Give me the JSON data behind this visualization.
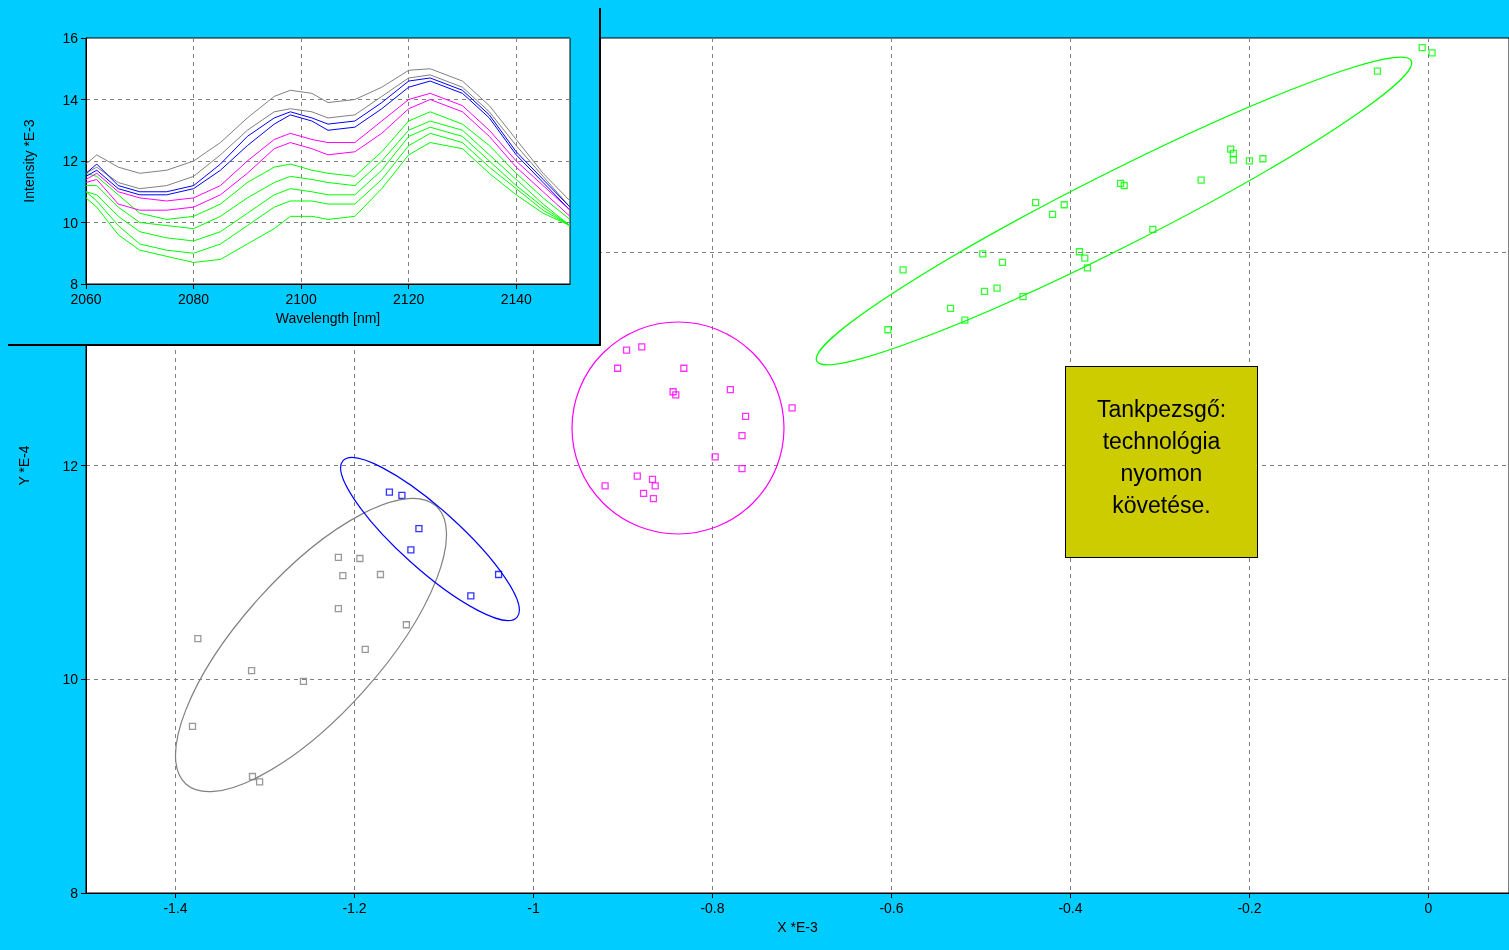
{
  "chart_data": [
    {
      "type": "scatter",
      "xlabel": "X *E-3",
      "ylabel": "Y *E-4",
      "xlim": [
        -1.5,
        0.09
      ],
      "ylim": [
        8,
        16
      ],
      "xticks": [
        -1.4,
        -1.2,
        -1,
        -0.8,
        -0.6,
        -0.4,
        -0.2,
        0
      ],
      "yticks": [
        8,
        10,
        12,
        {
          "value": 14,
          "label": null
        }
      ],
      "grid": true,
      "marker": "square",
      "annotations": [
        "Tankpezsgő: technológia nyomon követése."
      ],
      "series": [
        {
          "color": "#808080",
          "x": [
            -1.375,
            -1.381,
            -1.315,
            -1.314,
            -1.306,
            -1.257,
            -1.218,
            -1.213,
            -1.218,
            -1.194,
            -1.188,
            -1.171,
            -1.142
          ],
          "values": [
            10.38,
            9.56,
            10.08,
            9.09,
            9.04,
            9.98,
            11.14,
            10.97,
            10.66,
            11.13,
            10.28,
            10.98,
            10.51
          ]
        },
        {
          "color": "#0000ff",
          "x": [
            -1.161,
            -1.147,
            -1.128,
            -1.137,
            -1.039,
            -1.07
          ],
          "values": [
            11.75,
            11.72,
            11.41,
            11.21,
            10.98,
            10.78
          ]
        },
        {
          "color": "#ff00ff",
          "x": [
            -0.896,
            -0.879,
            -0.906,
            -0.832,
            -0.844,
            -0.841,
            -0.78,
            -0.711,
            -0.763,
            -0.767,
            -0.797,
            -0.767,
            -0.92,
            -0.884,
            -0.867,
            -0.864,
            -0.877,
            -0.866
          ],
          "values": [
            13.08,
            13.11,
            12.91,
            12.91,
            12.69,
            12.66,
            12.71,
            12.54,
            12.46,
            12.28,
            12.08,
            11.97,
            11.81,
            11.9,
            11.87,
            11.81,
            11.74,
            11.69
          ]
        },
        {
          "color": "#00ff00",
          "x": [
            -0.007,
            0.004,
            -0.057,
            -0.221,
            -0.218,
            -0.218,
            -0.2,
            -0.185,
            -0.254,
            -0.344,
            -0.34,
            -0.308,
            -0.439,
            -0.407,
            -0.42,
            -0.39,
            -0.384,
            -0.381,
            -0.498,
            -0.476,
            -0.482,
            -0.496,
            -0.453,
            -0.587,
            -0.534,
            -0.518,
            -0.604
          ],
          "values": [
            15.91,
            15.86,
            15.69,
            14.96,
            14.92,
            14.86,
            14.85,
            14.87,
            14.67,
            14.64,
            14.62,
            14.21,
            14.46,
            14.44,
            14.35,
            14.0,
            13.94,
            13.85,
            13.98,
            13.9,
            13.66,
            13.63,
            13.58,
            13.83,
            13.47,
            13.36,
            13.27
          ]
        }
      ]
    },
    {
      "type": "line",
      "xlabel": "Wavelength [nm]",
      "ylabel": "Intensity *E-3",
      "xlim": [
        2060,
        2150
      ],
      "ylim": [
        8,
        16
      ],
      "xticks": [
        2060,
        2080,
        2100,
        2120,
        2140
      ],
      "yticks": [
        8,
        10,
        12,
        14,
        16
      ],
      "grid": true,
      "x": [
        2060,
        2062,
        2066,
        2070,
        2075,
        2080,
        2085,
        2090,
        2095,
        2098,
        2102,
        2105,
        2110,
        2115,
        2120,
        2124,
        2130,
        2135,
        2140,
        2145,
        2150
      ],
      "series": [
        {
          "color": "#00ff00",
          "values": [
            11.6,
            11.5,
            10.9,
            10.3,
            10.1,
            10.2,
            10.6,
            11.3,
            11.8,
            11.9,
            11.7,
            11.6,
            11.5,
            12.3,
            13.3,
            13.6,
            13.2,
            12.5,
            11.6,
            10.8,
            10.1
          ]
        },
        {
          "color": "#00ff00",
          "values": [
            11.2,
            11.2,
            10.5,
            10.0,
            9.9,
            9.8,
            10.2,
            10.8,
            11.3,
            11.5,
            11.4,
            11.3,
            11.2,
            12.0,
            13.0,
            13.3,
            13.0,
            12.2,
            11.4,
            10.6,
            9.9
          ]
        },
        {
          "color": "#00ff00",
          "values": [
            11.0,
            10.9,
            10.2,
            9.7,
            9.5,
            9.4,
            9.7,
            10.3,
            10.9,
            11.1,
            11.0,
            10.9,
            10.9,
            11.7,
            12.8,
            13.1,
            12.8,
            12.0,
            11.2,
            10.5,
            9.9
          ]
        },
        {
          "color": "#00ff00",
          "values": [
            11.0,
            10.7,
            9.9,
            9.3,
            9.1,
            9.0,
            9.3,
            9.9,
            10.5,
            10.7,
            10.7,
            10.6,
            10.6,
            11.4,
            12.5,
            12.9,
            12.6,
            11.8,
            11.1,
            10.4,
            9.9
          ]
        },
        {
          "color": "#00ff00",
          "values": [
            10.8,
            10.5,
            9.6,
            9.1,
            8.9,
            8.7,
            8.8,
            9.3,
            9.8,
            10.2,
            10.2,
            10.1,
            10.2,
            11.1,
            12.2,
            12.6,
            12.4,
            11.6,
            10.9,
            10.3,
            9.9
          ]
        },
        {
          "color": "#808080",
          "values": [
            11.9,
            12.2,
            11.8,
            11.6,
            11.7,
            12.0,
            12.6,
            13.4,
            14.1,
            14.3,
            14.2,
            13.9,
            14.0,
            14.4,
            14.95,
            15.0,
            14.6,
            13.8,
            12.7,
            11.6,
            10.7
          ]
        },
        {
          "color": "#808080",
          "values": [
            11.6,
            11.8,
            11.3,
            11.1,
            11.2,
            11.5,
            12.2,
            13.0,
            13.6,
            13.7,
            13.6,
            13.4,
            13.5,
            14.1,
            14.7,
            14.8,
            14.4,
            13.6,
            12.5,
            11.5,
            10.5
          ]
        },
        {
          "color": "#0000ff",
          "values": [
            11.6,
            11.9,
            11.2,
            11.0,
            11.0,
            11.2,
            11.9,
            12.8,
            13.4,
            13.6,
            13.4,
            13.2,
            13.3,
            13.9,
            14.6,
            14.7,
            14.3,
            13.5,
            12.3,
            11.4,
            10.5
          ]
        },
        {
          "color": "#0000ff",
          "values": [
            11.5,
            11.7,
            11.1,
            10.9,
            10.9,
            11.1,
            11.7,
            12.5,
            13.2,
            13.5,
            13.3,
            13.0,
            13.1,
            13.7,
            14.4,
            14.6,
            14.2,
            13.4,
            12.2,
            11.3,
            10.4
          ]
        },
        {
          "color": "#ff00ff",
          "values": [
            11.4,
            11.6,
            11.0,
            10.8,
            10.7,
            10.8,
            11.2,
            12.0,
            12.7,
            12.9,
            12.7,
            12.6,
            12.6,
            13.3,
            14.0,
            14.2,
            13.8,
            13.0,
            12.0,
            11.2,
            10.4
          ]
        },
        {
          "color": "#ff00ff",
          "values": [
            11.3,
            11.4,
            10.6,
            10.4,
            10.4,
            10.5,
            10.9,
            11.6,
            12.4,
            12.6,
            12.4,
            12.2,
            12.3,
            12.9,
            13.7,
            14.0,
            13.6,
            12.8,
            11.8,
            11.0,
            10.2
          ]
        }
      ]
    }
  ]
}
